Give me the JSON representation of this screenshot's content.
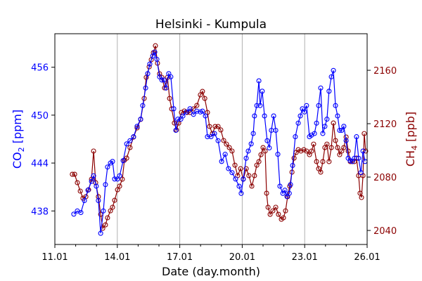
{
  "chart_data": {
    "type": "line",
    "title": "Helsinki - Kumpula",
    "xlabel": "Date (day.month)",
    "ylabel_left": "CO2 [ppm]",
    "ylabel_right": "CH4 [ppb]",
    "xlim": [
      11,
      26
    ],
    "xticks": [
      11,
      14,
      17,
      20,
      23,
      26
    ],
    "xtick_labels": [
      "11.01",
      "14.01",
      "17.01",
      "20.01",
      "23.01",
      "26.01"
    ],
    "xminor_step": 1,
    "grid": "vertical at major x ticks",
    "ylim_left": [
      433.8,
      460.2
    ],
    "yticks_left": [
      438,
      444,
      450,
      456
    ],
    "ylim_right": [
      2029.5,
      2187.4
    ],
    "yticks_right": [
      2040,
      2080,
      2120,
      2160
    ],
    "colors": {
      "co2": "#0000ff",
      "ch4": "#8b0000"
    },
    "series": [
      {
        "name": "CO2",
        "axis": "left",
        "marker": "open-circle",
        "x": [
          11.91,
          12.08,
          12.25,
          12.42,
          12.59,
          12.76,
          12.86,
          12.99,
          13.09,
          13.2,
          13.33,
          13.43,
          13.53,
          13.67,
          13.77,
          13.87,
          14.01,
          14.11,
          14.28,
          14.45,
          14.61,
          14.78,
          14.95,
          15.12,
          15.22,
          15.36,
          15.46,
          15.56,
          15.7,
          15.8,
          15.9,
          16.03,
          16.14,
          16.24,
          16.34,
          16.47,
          16.57,
          16.71,
          16.81,
          16.91,
          17.05,
          17.15,
          17.32,
          17.49,
          17.66,
          17.82,
          17.99,
          18.09,
          18.23,
          18.33,
          18.5,
          18.67,
          18.84,
          19.01,
          19.18,
          19.34,
          19.51,
          19.68,
          19.85,
          19.95,
          20.05,
          20.19,
          20.29,
          20.43,
          20.53,
          20.59,
          20.7,
          20.8,
          20.86,
          20.96,
          21.07,
          21.2,
          21.3,
          21.4,
          21.51,
          21.61,
          21.71,
          21.81,
          21.95,
          22.05,
          22.15,
          22.26,
          22.32,
          22.42,
          22.55,
          22.69,
          22.79,
          22.89,
          22.99,
          23.09,
          23.23,
          23.33,
          23.47,
          23.57,
          23.67,
          23.77,
          23.87,
          23.97,
          24.07,
          24.17,
          24.28,
          24.38,
          24.48,
          24.58,
          24.68,
          24.78,
          24.88,
          24.99,
          25.09,
          25.19,
          25.29,
          25.39,
          25.49,
          25.59,
          25.7,
          25.8,
          25.9
        ],
        "y": [
          437.6,
          438.0,
          437.8,
          439.3,
          440.6,
          441.7,
          442.4,
          441.1,
          439.3,
          435.2,
          438.0,
          441.3,
          443.5,
          444.0,
          444.2,
          442.0,
          442.0,
          442.4,
          444.3,
          446.4,
          446.8,
          447.3,
          448.6,
          449.5,
          451.2,
          453.4,
          455.2,
          456.4,
          457.4,
          457.9,
          457.0,
          454.8,
          454.4,
          454.4,
          453.4,
          455.2,
          454.8,
          450.8,
          448.1,
          449.5,
          449.5,
          449.9,
          450.4,
          450.8,
          450.1,
          450.5,
          450.4,
          450.5,
          449.9,
          447.3,
          447.3,
          447.7,
          446.8,
          444.2,
          445.1,
          443.3,
          442.8,
          442.0,
          441.1,
          440.2,
          442.0,
          444.6,
          445.5,
          446.4,
          447.7,
          449.9,
          451.2,
          454.3,
          451.2,
          453.0,
          449.9,
          446.8,
          445.9,
          448.1,
          449.9,
          448.1,
          445.1,
          441.1,
          440.2,
          440.6,
          439.8,
          440.2,
          441.3,
          443.7,
          447.3,
          449.0,
          449.9,
          450.8,
          450.4,
          451.2,
          447.3,
          447.5,
          447.7,
          449.0,
          451.2,
          453.4,
          447.7,
          448.6,
          449.5,
          453.0,
          454.8,
          455.6,
          451.2,
          449.9,
          448.1,
          448.1,
          448.6,
          446.8,
          444.6,
          444.3,
          444.2,
          444.6,
          447.3,
          444.6,
          442.8,
          445.5,
          444.2
        ]
      },
      {
        "name": "CH4",
        "axis": "right",
        "marker": "open-circle",
        "x": [
          11.84,
          11.95,
          12.08,
          12.22,
          12.35,
          12.49,
          12.62,
          12.76,
          12.86,
          12.96,
          13.09,
          13.2,
          13.3,
          13.43,
          13.53,
          13.67,
          13.77,
          13.87,
          14.01,
          14.11,
          14.24,
          14.34,
          14.45,
          14.61,
          14.78,
          14.95,
          15.12,
          15.29,
          15.39,
          15.53,
          15.63,
          15.73,
          15.83,
          15.93,
          16.03,
          16.14,
          16.27,
          16.41,
          16.51,
          16.61,
          16.74,
          16.84,
          16.95,
          17.08,
          17.22,
          17.35,
          17.49,
          17.66,
          17.82,
          17.99,
          18.09,
          18.2,
          18.33,
          18.43,
          18.57,
          18.7,
          18.84,
          18.97,
          19.11,
          19.24,
          19.38,
          19.51,
          19.65,
          19.78,
          19.92,
          20.05,
          20.19,
          20.32,
          20.46,
          20.59,
          20.7,
          20.8,
          20.9,
          21.0,
          21.1,
          21.17,
          21.24,
          21.34,
          21.47,
          21.61,
          21.74,
          21.88,
          21.98,
          22.08,
          22.18,
          22.28,
          22.39,
          22.49,
          22.59,
          22.69,
          22.82,
          22.96,
          23.09,
          23.23,
          23.33,
          23.43,
          23.57,
          23.67,
          23.77,
          23.87,
          23.97,
          24.07,
          24.17,
          24.28,
          24.38,
          24.48,
          24.58,
          24.68,
          24.78,
          24.88,
          24.99,
          25.09,
          25.19,
          25.29,
          25.39,
          25.49,
          25.59,
          25.66,
          25.73,
          25.8,
          25.86,
          25.93
        ],
        "y": [
          2082.1,
          2082.1,
          2075.8,
          2069.5,
          2064.2,
          2065.3,
          2070.5,
          2078.4,
          2099.5,
          2075.8,
          2065.3,
          2052.1,
          2041.6,
          2044.2,
          2049.5,
          2054.7,
          2057.4,
          2062.6,
          2070.5,
          2073.2,
          2078.4,
          2092.6,
          2094.2,
          2102.1,
          2110.0,
          2116.8,
          2123.2,
          2138.9,
          2154.7,
          2162.6,
          2167.9,
          2173.2,
          2178.4,
          2165.3,
          2157.4,
          2154.7,
          2146.8,
          2154.7,
          2138.9,
          2131.1,
          2120.5,
          2115.3,
          2120.5,
          2128.4,
          2129.5,
          2128.4,
          2128.4,
          2131.1,
          2133.7,
          2141.6,
          2144.2,
          2138.9,
          2128.4,
          2117.9,
          2112.6,
          2117.9,
          2117.9,
          2115.3,
          2107.4,
          2104.7,
          2102.1,
          2099.5,
          2088.9,
          2081.1,
          2086.3,
          2078.4,
          2086.3,
          2081.1,
          2073.2,
          2081.1,
          2088.9,
          2091.6,
          2096.8,
          2102.1,
          2099.5,
          2067.9,
          2057.4,
          2052.1,
          2054.7,
          2057.4,
          2052.1,
          2048.4,
          2049.5,
          2054.7,
          2065.3,
          2073.2,
          2083.7,
          2094.2,
          2098.4,
          2100.5,
          2099.5,
          2100.5,
          2099.5,
          2096.8,
          2099.5,
          2104.7,
          2091.6,
          2086.3,
          2083.7,
          2091.6,
          2102.1,
          2104.7,
          2091.6,
          2102.1,
          2120.5,
          2107.4,
          2102.1,
          2096.8,
          2099.5,
          2102.1,
          2110.0,
          2099.5,
          2091.6,
          2091.6,
          2091.6,
          2094.2,
          2081.1,
          2067.9,
          2064.7,
          2081.1,
          2112.6,
          2099.5
        ]
      }
    ]
  },
  "labels": {
    "co2_main": "CO",
    "co2_sub": "2",
    "co2_unit": " [ppm]",
    "ch4_main": "CH",
    "ch4_sub": "4",
    "ch4_unit": " [ppb]"
  }
}
